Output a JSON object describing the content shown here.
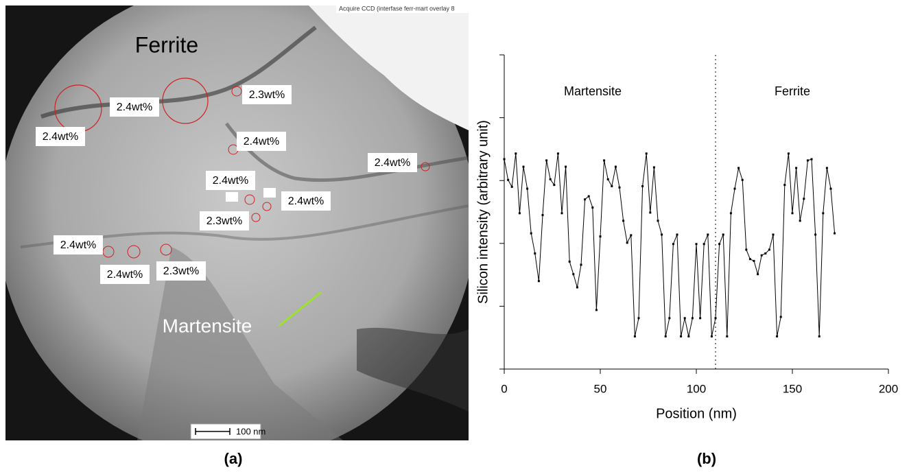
{
  "image": {
    "header": "Acquire CCD  (interfase ferr-mart overlay 8",
    "regions": [
      "Ferrite",
      "Martensite"
    ],
    "labels": [
      "2.4wt%",
      "2.4wt%",
      "2.3wt%",
      "2.4wt%",
      "2.4wt%",
      "2.4wt%",
      "2.4wt%",
      "2.3wt%",
      "2.4wt%",
      "2.4wt%",
      "2.3wt%"
    ],
    "scale_bar": "100 nm",
    "panel": "(a)"
  },
  "chart_data": {
    "type": "line",
    "panel": "(b)",
    "xlabel": "Position (nm)",
    "ylabel": "Silicon intensity (arbitrary unit)",
    "annotations": [
      "Martensite",
      "Ferrite"
    ],
    "boundary": 110,
    "x": [
      0,
      2,
      4,
      6,
      8,
      10,
      12,
      14,
      16,
      18,
      20,
      22,
      24,
      26,
      28,
      30,
      32,
      34,
      36,
      38,
      40,
      42,
      44,
      46,
      48,
      50,
      52,
      54,
      56,
      58,
      60,
      62,
      64,
      66,
      68,
      70,
      72,
      74,
      76,
      78,
      80,
      82,
      84,
      86,
      88,
      90,
      92,
      94,
      96,
      98,
      100,
      102,
      104,
      106,
      108,
      110,
      112,
      114,
      116,
      118,
      120,
      122,
      124,
      126,
      128,
      130,
      132,
      134,
      136,
      138,
      140,
      142,
      144,
      146,
      148,
      150,
      152,
      154,
      156,
      158,
      160,
      162,
      164,
      166,
      168,
      170,
      172
    ],
    "series": [
      {
        "color": "#000000",
        "values": [
          3.34,
          3.01,
          2.9,
          3.43,
          2.48,
          3.22,
          2.87,
          2.16,
          1.84,
          1.4,
          2.45,
          3.32,
          3.02,
          2.93,
          3.43,
          2.48,
          3.22,
          1.71,
          1.51,
          1.3,
          1.66,
          2.7,
          2.75,
          2.57,
          0.94,
          2.11,
          3.32,
          3.02,
          2.91,
          3.22,
          2.89,
          2.36,
          2.01,
          2.13,
          0.52,
          0.81,
          2.91,
          3.43,
          2.49,
          3.21,
          2.36,
          2.14,
          0.52,
          0.81,
          1.99,
          2.14,
          0.52,
          0.81,
          0.52,
          0.81,
          1.99,
          0.81,
          1.99,
          2.14,
          0.52,
          0.81,
          1.99,
          2.14,
          0.52,
          2.48,
          2.87,
          3.2,
          3.01,
          1.9,
          1.75,
          1.72,
          1.51,
          1.81,
          1.84,
          1.9,
          2.14,
          0.52,
          0.83,
          2.93,
          3.43,
          2.48,
          3.2,
          2.36,
          2.71,
          3.32,
          3.34,
          2.14,
          0.52,
          2.48,
          3.2,
          2.87,
          2.16
        ]
      }
    ],
    "xlim": [
      0,
      200
    ],
    "xticks": [
      0,
      50,
      100,
      150,
      200
    ],
    "ylim": [
      0,
      5
    ],
    "yticks": [
      0,
      1,
      2,
      3,
      4,
      5
    ]
  }
}
